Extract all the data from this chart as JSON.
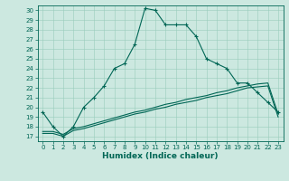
{
  "title": "",
  "xlabel": "Humidex (Indice chaleur)",
  "bg_color": "#cce8e0",
  "grid_color": "#99ccbb",
  "line_color": "#006655",
  "spine_color": "#006655",
  "xlim": [
    -0.5,
    23.5
  ],
  "ylim": [
    16.5,
    30.5
  ],
  "xticks": [
    0,
    1,
    2,
    3,
    4,
    5,
    6,
    7,
    8,
    9,
    10,
    11,
    12,
    13,
    14,
    15,
    16,
    17,
    18,
    19,
    20,
    21,
    22,
    23
  ],
  "yticks": [
    17,
    18,
    19,
    20,
    21,
    22,
    23,
    24,
    25,
    26,
    27,
    28,
    29,
    30
  ],
  "series1_x": [
    0,
    1,
    2,
    3,
    4,
    5,
    6,
    7,
    8,
    9,
    10,
    11,
    12,
    13,
    14,
    15,
    16,
    17,
    18,
    19,
    20,
    21,
    22,
    23
  ],
  "series1_y": [
    19.5,
    18.0,
    17.0,
    18.0,
    20.0,
    21.0,
    22.2,
    24.0,
    24.5,
    26.5,
    30.2,
    30.0,
    28.5,
    28.5,
    28.5,
    27.3,
    25.0,
    24.5,
    24.0,
    22.5,
    22.5,
    21.5,
    20.5,
    19.5
  ],
  "series2_x": [
    0,
    1,
    2,
    3,
    4,
    5,
    6,
    7,
    8,
    9,
    10,
    11,
    12,
    13,
    14,
    15,
    16,
    17,
    18,
    19,
    20,
    21,
    22,
    23
  ],
  "series2_y": [
    17.5,
    17.5,
    17.2,
    17.8,
    18.0,
    18.3,
    18.6,
    18.9,
    19.2,
    19.5,
    19.7,
    20.0,
    20.3,
    20.5,
    20.8,
    21.0,
    21.2,
    21.5,
    21.7,
    22.0,
    22.2,
    22.4,
    22.5,
    19.3
  ],
  "series3_x": [
    0,
    1,
    2,
    3,
    4,
    5,
    6,
    7,
    8,
    9,
    10,
    11,
    12,
    13,
    14,
    15,
    16,
    17,
    18,
    19,
    20,
    21,
    22,
    23
  ],
  "series3_y": [
    17.3,
    17.3,
    17.0,
    17.6,
    17.8,
    18.1,
    18.4,
    18.7,
    19.0,
    19.3,
    19.5,
    19.8,
    20.0,
    20.3,
    20.5,
    20.7,
    21.0,
    21.2,
    21.4,
    21.7,
    22.0,
    22.1,
    22.2,
    19.0
  ],
  "tick_fontsize": 5,
  "xlabel_fontsize": 6.5,
  "lw": 0.8,
  "marker_size": 3.0
}
